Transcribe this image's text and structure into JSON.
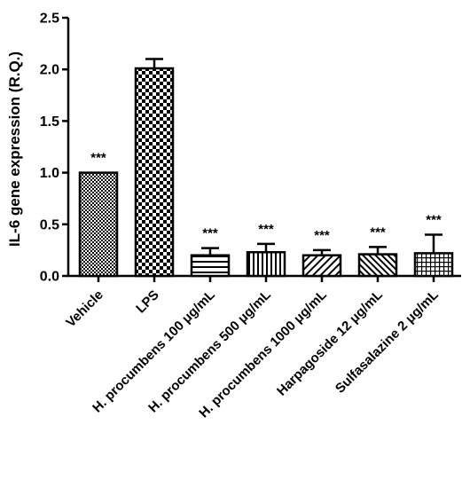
{
  "chart_data": {
    "type": "bar",
    "categories": [
      "Vehicle",
      "LPS",
      "H. procumbens 100 μg/mL",
      "H. procumbens 500 μg/mL",
      "H. procumbens 1000 μg/mL",
      "Harpagoside 12 μg/mL",
      "Sulfasalazine 2 μg/mL"
    ],
    "values": [
      1.0,
      2.01,
      0.2,
      0.23,
      0.2,
      0.21,
      0.22
    ],
    "errors": [
      0.0,
      0.09,
      0.07,
      0.08,
      0.05,
      0.07,
      0.18
    ],
    "annotations": [
      "***",
      "",
      "***",
      "***",
      "***",
      "***",
      "***"
    ],
    "patterns": [
      "fine-check",
      "checker",
      "horizontal",
      "vertical",
      "diagonal-down",
      "diagonal-up",
      "grid"
    ],
    "title": "",
    "xlabel": "",
    "ylabel": "IL-6 gene expression (R.Q.)",
    "ylim": [
      0,
      2.5
    ],
    "yticks": [
      "0.0",
      "0.5",
      "1.0",
      "1.5",
      "2.0",
      "2.5"
    ],
    "grid": false,
    "legend": "none"
  }
}
